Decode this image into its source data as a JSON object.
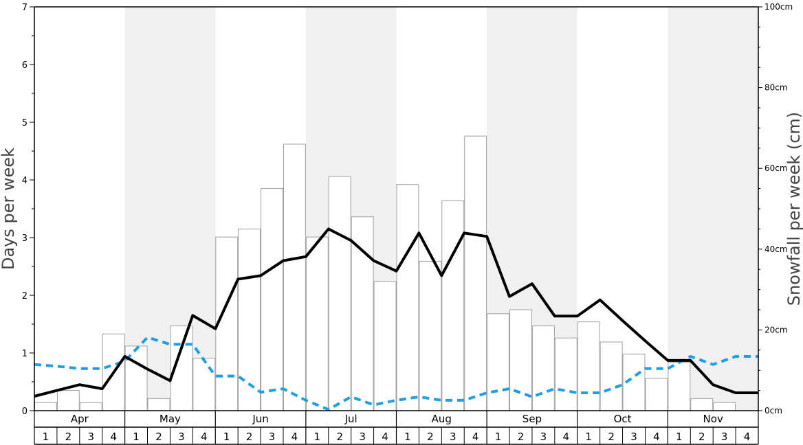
{
  "chart_data": {
    "type": "bar+line",
    "title": "",
    "ylabel_left": "Days per week",
    "ylabel_right": "Snowfall per week (cm)",
    "ylim_left": [
      0,
      7
    ],
    "ylim_right": [
      0,
      100
    ],
    "left_ticks": [
      "0",
      "1",
      "2",
      "3",
      "4",
      "5",
      "6",
      "7"
    ],
    "right_ticks": [
      {
        "value": 0,
        "label": "0cm"
      },
      {
        "value": 20,
        "label": "20cm"
      },
      {
        "value": 40,
        "label": "40cm"
      },
      {
        "value": 60,
        "label": "60cm"
      },
      {
        "value": 80,
        "label": "80cm"
      },
      {
        "value": 100,
        "label": "100cm"
      }
    ],
    "months": [
      "Apr",
      "May",
      "Jun",
      "Jul",
      "Aug",
      "Sep",
      "Oct",
      "Nov"
    ],
    "weeks": [
      "1",
      "2",
      "3",
      "4"
    ],
    "shaded_months": [
      false,
      true,
      false,
      true,
      false,
      true,
      false,
      true
    ],
    "colors": {
      "shade": "#f0f0f0",
      "bar_stroke": "#a0a0a0",
      "line_solid": "#000000",
      "line_dashed": "#1e9fe0"
    },
    "series": [
      {
        "kind": "bar",
        "axis": "right",
        "unit": "cm",
        "values": [
          2,
          5,
          2,
          19,
          16,
          3,
          21,
          13,
          43,
          45,
          55,
          66,
          43,
          58,
          48,
          32,
          56,
          37,
          52,
          68,
          24,
          25,
          21,
          18,
          22,
          17,
          14,
          8,
          12,
          3,
          2,
          0
        ]
      },
      {
        "kind": "line",
        "style": "solid",
        "axis": "left",
        "values": [
          0.25,
          0.35,
          0.45,
          0.38,
          0.94,
          0.72,
          0.52,
          1.65,
          1.42,
          2.28,
          2.34,
          2.6,
          2.67,
          3.15,
          2.95,
          2.6,
          2.42,
          3.08,
          2.34,
          3.08,
          3.02,
          1.98,
          2.2,
          1.64,
          1.64,
          1.92,
          1.56,
          1.21,
          0.87,
          0.87,
          0.45,
          0.31,
          0.31
        ]
      },
      {
        "kind": "line",
        "style": "dashed",
        "axis": "left",
        "values": [
          0.8,
          0.77,
          0.73,
          0.73,
          0.86,
          1.27,
          1.15,
          1.15,
          0.6,
          0.6,
          0.32,
          0.38,
          0.18,
          0.02,
          0.24,
          0.1,
          0.18,
          0.24,
          0.18,
          0.18,
          0.31,
          0.38,
          0.24,
          0.38,
          0.31,
          0.31,
          0.45,
          0.73,
          0.73,
          0.94,
          0.8,
          0.94,
          0.94
        ]
      }
    ]
  }
}
